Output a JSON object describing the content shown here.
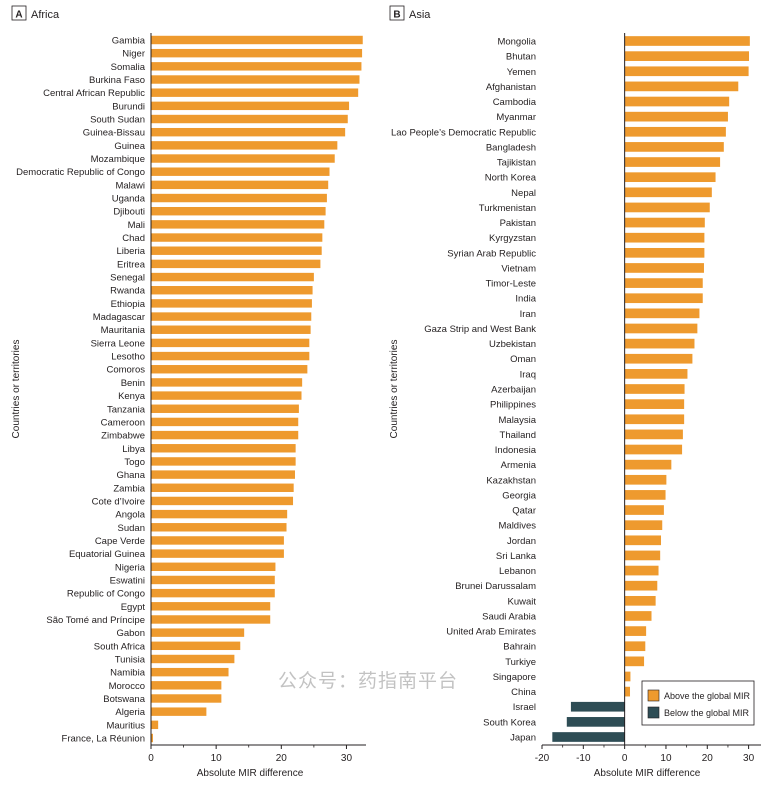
{
  "colors": {
    "above": "#EE9A2E",
    "below": "#2E4D55",
    "axis": "#231f20",
    "tick_text": "#231f20",
    "panel_letter_border": "#231f20"
  },
  "watermark": "公众号：药指南平台",
  "chart_data": [
    {
      "type": "bar",
      "orientation": "horizontal",
      "panel_letter": "A",
      "title": "Africa",
      "xlabel": "Absolute MIR difference",
      "ylabel": "Countries or territories",
      "xlim": [
        0,
        33
      ],
      "xticks": [
        0,
        10,
        20,
        30
      ],
      "grid": false,
      "categories": [
        "Gambia",
        "Niger",
        "Somalia",
        "Burkina Faso",
        "Central African Republic",
        "Burundi",
        "South Sudan",
        "Guinea-Bissau",
        "Guinea",
        "Mozambique",
        "Democratic Republic of Congo",
        "Malawi",
        "Uganda",
        "Djibouti",
        "Mali",
        "Chad",
        "Liberia",
        "Eritrea",
        "Senegal",
        "Rwanda",
        "Ethiopia",
        "Madagascar",
        "Mauritania",
        "Sierra Leone",
        "Lesotho",
        "Comoros",
        "Benin",
        "Kenya",
        "Tanzania",
        "Cameroon",
        "Zimbabwe",
        "Libya",
        "Togo",
        "Ghana",
        "Zambia",
        "Cote d’Ivoire",
        "Angola",
        "Sudan",
        "Cape Verde",
        "Equatorial Guinea",
        "Nigeria",
        "Eswatini",
        "Republic of Congo",
        "Egypt",
        "São Tomé and Príncipe",
        "Gabon",
        "South Africa",
        "Tunisia",
        "Namibia",
        "Morocco",
        "Botswana",
        "Algeria",
        "Mauritius",
        "France, La Réunion"
      ],
      "values": [
        32.5,
        32.4,
        32.3,
        32.0,
        31.8,
        30.4,
        30.2,
        29.8,
        28.6,
        28.2,
        27.4,
        27.2,
        27.0,
        26.8,
        26.6,
        26.3,
        26.2,
        26.0,
        25.0,
        24.8,
        24.7,
        24.6,
        24.5,
        24.3,
        24.3,
        24.0,
        23.2,
        23.1,
        22.7,
        22.6,
        22.6,
        22.2,
        22.2,
        22.1,
        21.9,
        21.8,
        20.9,
        20.8,
        20.4,
        20.4,
        19.1,
        19.0,
        19.0,
        18.3,
        18.3,
        14.3,
        13.7,
        12.8,
        11.9,
        10.8,
        10.8,
        8.5,
        1.1,
        0.3
      ]
    },
    {
      "type": "bar",
      "orientation": "horizontal",
      "panel_letter": "B",
      "title": "Asia",
      "xlabel": "Absolute MIR difference",
      "ylabel": "Countries or territories",
      "xlim": [
        -20,
        33
      ],
      "xticks": [
        -20,
        -10,
        0,
        10,
        20,
        30
      ],
      "grid": false,
      "legend_position": "bottom-right",
      "legend": [
        "Above the global MIR",
        "Below the global MIR"
      ],
      "categories": [
        "Mongolia",
        "Bhutan",
        "Yemen",
        "Afghanistan",
        "Cambodia",
        "Myanmar",
        "Lao People’s Democratic Republic",
        "Bangladesh",
        "Tajikistan",
        "North Korea",
        "Nepal",
        "Turkmenistan",
        "Pakistan",
        "Kyrgyzstan",
        "Syrian Arab Republic",
        "Vietnam",
        "Timor-Leste",
        "India",
        "Iran",
        "Gaza Strip and West Bank",
        "Uzbekistan",
        "Oman",
        "Iraq",
        "Azerbaijan",
        "Philippines",
        "Malaysia",
        "Thailand",
        "Indonesia",
        "Armenia",
        "Kazakhstan",
        "Georgia",
        "Qatar",
        "Maldives",
        "Jordan",
        "Sri Lanka",
        "Lebanon",
        "Brunei Darussalam",
        "Kuwait",
        "Saudi Arabia",
        "United Arab Emirates",
        "Bahrain",
        "Turkiye",
        "Singapore",
        "China",
        "Israel",
        "South Korea",
        "Japan"
      ],
      "values": [
        30.3,
        30.1,
        30.0,
        27.5,
        25.3,
        25.0,
        24.5,
        24.0,
        23.1,
        22.0,
        21.1,
        20.6,
        19.4,
        19.3,
        19.3,
        19.2,
        18.9,
        18.9,
        18.1,
        17.6,
        16.9,
        16.4,
        15.2,
        14.5,
        14.4,
        14.4,
        14.1,
        13.9,
        11.3,
        10.1,
        9.9,
        9.5,
        9.1,
        8.8,
        8.6,
        8.2,
        7.9,
        7.5,
        6.5,
        5.2,
        5.0,
        4.7,
        1.4,
        1.3,
        -13.0,
        -14.0,
        -17.5
      ]
    }
  ]
}
